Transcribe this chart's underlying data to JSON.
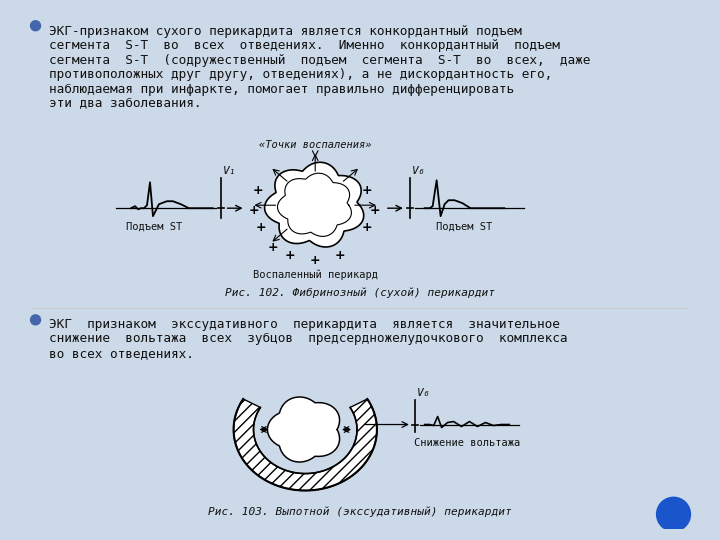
{
  "bg_color": "#ccd9e8",
  "panel_color": "#f8f9fb",
  "border_left_color": "#b8c8dc",
  "text_color": "#111111",
  "bullet_color": "#4466aa",
  "blue_dot_color": "#1a55cc",
  "body_fontsize": 9.2,
  "fig_caption_fontsize": 8.0,
  "bullet1_line1": "ЭКГ-признаком сухого перикардита является конкордантный подъем",
  "bullet1_line2": "сегмента  S-T  во  всех  отведениях.  Именно  конкордантный  подъем",
  "bullet1_line3": "сегмента  S-T  (содружественный  подъем  сегмента  S-T  во  всех,  даже",
  "bullet1_line4": "противоположных друг другу, отведениях), а не дискордантность его,",
  "bullet1_line5": "наблюдаемая при инфаркте, помогает правильно дифференцировать",
  "bullet1_line6": "эти два заболевания.",
  "caption1": "Рис. 102. Фибринозный (сухой) перикардит",
  "bullet2_line1": "ЭКГ  признаком  экссудативного  перикардита  является  значительное",
  "bullet2_line2": "снижение  вольтажа  всех  зубцов  предсердножелудочкового  комплекса",
  "bullet2_line3": "во всех отведениях.",
  "caption2": "Рис. 103. Выпотной (экссудативный) перикардит",
  "label_podyem_st": "Подъем ST",
  "label_vospalenny": "Воспаленный перикард",
  "label_tochki": "«Точки воспаления»",
  "label_snizhenie": "Снижение вольтажа",
  "label_v1": "V₁",
  "label_v6_top": "V₆",
  "label_v6_bot": "V₆"
}
